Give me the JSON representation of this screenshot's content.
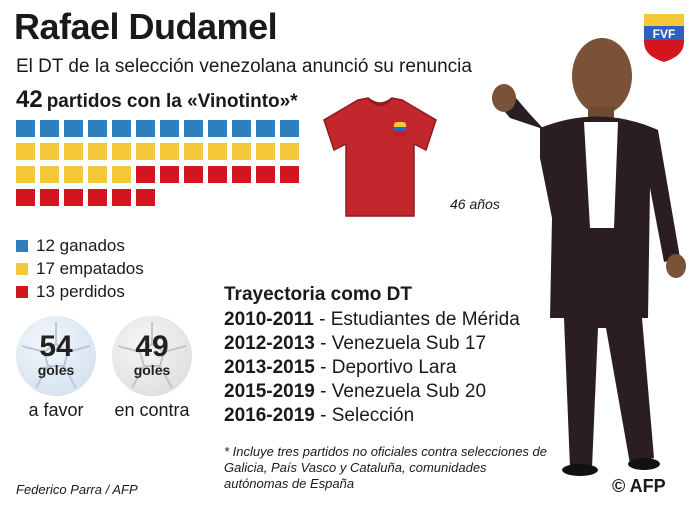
{
  "header": {
    "title": "Rafael Dudamel",
    "subtitle": "El DT de la selección venezolana anunció su renuncia",
    "matches_number": "42",
    "matches_text": "partidos con la «Vinotinto»*"
  },
  "colors": {
    "won": "#2f7fbf",
    "drawn": "#f5c83a",
    "lost": "#d2151f",
    "shirt": "#c1272d",
    "ball": "#dde8f4",
    "ball_grey": "#e6e6e6"
  },
  "results": {
    "won": 12,
    "drawn": 17,
    "lost": 13,
    "columns": 12
  },
  "legend": [
    {
      "label": "12 ganados",
      "color": "#2f7fbf"
    },
    {
      "label": "17 empatados",
      "color": "#f5c83a"
    },
    {
      "label": "13 perdidos",
      "color": "#d2151f"
    }
  ],
  "goals": {
    "for_value": "54",
    "for_label": "goles",
    "for_caption": "a favor",
    "against_value": "49",
    "against_label": "goles",
    "against_caption": "en contra"
  },
  "age": "46 años",
  "logo_text": "FVF",
  "career": {
    "title": "Trayectoria como DT",
    "rows": [
      {
        "years": "2010-2011",
        "team": " - Estudiantes de Mérida"
      },
      {
        "years": "2012-2013",
        "team": " - Venezuela Sub 17"
      },
      {
        "years": "2013-2015",
        "team": " - Deportivo Lara"
      },
      {
        "years": "2015-2019",
        "team": " - Venezuela Sub 20"
      },
      {
        "years": "2016-2019",
        "team": " - Selección"
      }
    ]
  },
  "note": "* Incluye tres partidos no oficiales contra selecciones de Galicia, País Vasco y Cataluña, comunidades autónomas de España",
  "credit": "Federico Parra / AFP",
  "agency": "© AFP"
}
